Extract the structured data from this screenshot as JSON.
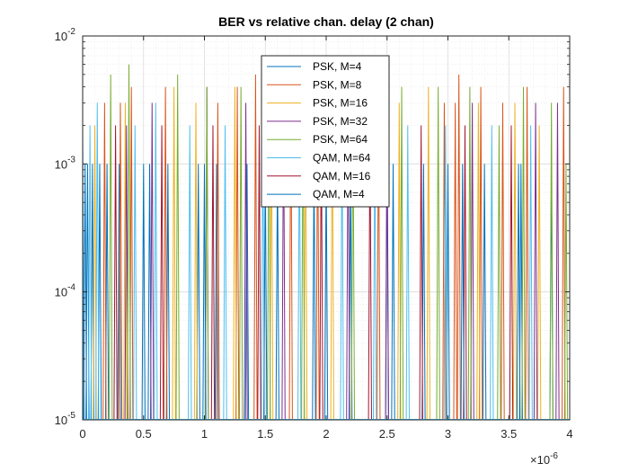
{
  "chart_data": {
    "type": "line",
    "title": "BER vs relative chan. delay (2 chan)",
    "xlabel": "",
    "ylabel": "",
    "xlim": [
      0,
      4e-06
    ],
    "ylim": [
      1e-05,
      0.01
    ],
    "yscale": "log",
    "grid": true,
    "minor_grid": true,
    "legend_position": "top-center",
    "x_tick_labels": [
      "0",
      "0.5",
      "1",
      "1.5",
      "2",
      "2.5",
      "3",
      "3.5",
      "4"
    ],
    "x_tick_values": [
      0,
      5e-07,
      1e-06,
      1.5e-06,
      2e-06,
      2.5e-06,
      3e-06,
      3.5e-06,
      4e-06
    ],
    "x_exponent_label": "×10",
    "x_exponent_power": "-6",
    "y_tick_values": [
      1e-05,
      0.0001,
      0.001,
      0.01
    ],
    "y_tick_base": "10",
    "y_tick_powers": [
      "-5",
      "-4",
      "-3",
      "-2"
    ],
    "colors": {
      "axes": "#262626",
      "grid": "#dcdcdc",
      "background": "#ffffff"
    },
    "series": [
      {
        "name": "PSK, M=4",
        "color": "#0072BD",
        "period": 2.5e-08,
        "peaks": [
          [
            0.0,
            0.001
          ],
          [
            0.04,
            0.001
          ],
          [
            0.08,
            0.001
          ],
          [
            0.14,
            0.001
          ],
          [
            0.2,
            0.001
          ],
          [
            0.3,
            0.001
          ],
          [
            0.55,
            0.001
          ],
          [
            0.7,
            0.001
          ],
          [
            0.95,
            0.001
          ],
          [
            1.1,
            0.001
          ],
          [
            1.35,
            0.001
          ],
          [
            1.6,
            0.001
          ],
          [
            1.9,
            0.001
          ],
          [
            2.2,
            0.001
          ],
          [
            2.5,
            0.001
          ],
          [
            2.8,
            0.001
          ],
          [
            3.0,
            0.001
          ],
          [
            3.3,
            0.001
          ],
          [
            3.6,
            0.001
          ],
          [
            3.85,
            0.001
          ]
        ]
      },
      {
        "name": "PSK, M=8",
        "color": "#D95319",
        "period": 2.5e-08,
        "peaks": [
          [
            0.18,
            0.003
          ],
          [
            0.31,
            0.003
          ],
          [
            0.4,
            0.004
          ],
          [
            0.68,
            0.004
          ],
          [
            1.11,
            0.003
          ],
          [
            1.27,
            0.004
          ],
          [
            1.42,
            0.005
          ],
          [
            1.71,
            0.004
          ],
          [
            1.93,
            0.003
          ],
          [
            2.43,
            0.003
          ],
          [
            2.97,
            0.003
          ],
          [
            3.06,
            0.003
          ],
          [
            3.09,
            0.005
          ],
          [
            3.27,
            0.004
          ],
          [
            3.45,
            0.003
          ],
          [
            3.65,
            0.004
          ],
          [
            3.95,
            0.004
          ]
        ]
      },
      {
        "name": "PSK, M=16",
        "color": "#EDB120",
        "period": 2.5e-08,
        "peaks": [
          [
            0.1,
            0.002
          ],
          [
            0.35,
            0.003
          ],
          [
            0.75,
            0.004
          ],
          [
            0.93,
            0.003
          ],
          [
            1.25,
            0.004
          ],
          [
            1.55,
            0.003
          ],
          [
            1.83,
            0.004
          ],
          [
            2.05,
            0.003
          ],
          [
            2.6,
            0.003
          ],
          [
            2.84,
            0.004
          ],
          [
            3.25,
            0.003
          ],
          [
            3.55,
            0.003
          ],
          [
            3.75,
            0.002
          ]
        ]
      },
      {
        "name": "PSK, M=32",
        "color": "#7E2F8E",
        "period": 2.5e-08,
        "peaks": [
          [
            0.36,
            0.002
          ],
          [
            0.57,
            0.003
          ],
          [
            1.02,
            0.004
          ],
          [
            1.34,
            0.003
          ],
          [
            1.65,
            0.003
          ],
          [
            2.18,
            0.003
          ],
          [
            2.5,
            0.003
          ],
          [
            3.2,
            0.003
          ],
          [
            3.72,
            0.003
          ],
          [
            3.9,
            0.003
          ]
        ]
      },
      {
        "name": "PSK, M=64",
        "color": "#77AC30",
        "period": 2.5e-08,
        "peaks": [
          [
            0.23,
            0.005
          ],
          [
            0.38,
            0.006
          ],
          [
            0.78,
            0.005
          ],
          [
            1.02,
            0.004
          ],
          [
            1.3,
            0.004
          ],
          [
            1.53,
            0.004
          ],
          [
            1.81,
            0.003
          ],
          [
            2.22,
            0.003
          ],
          [
            2.62,
            0.004
          ],
          [
            2.92,
            0.004
          ],
          [
            3.18,
            0.004
          ],
          [
            3.42,
            0.002
          ],
          [
            3.62,
            0.004
          ],
          [
            3.85,
            0.003
          ],
          [
            3.97,
            0.001
          ]
        ]
      },
      {
        "name": "QAM, M=64",
        "color": "#4DBEEE",
        "period": 2.5e-08,
        "peaks": [
          [
            0.0,
            0.002
          ],
          [
            0.06,
            0.002
          ],
          [
            0.12,
            0.003
          ],
          [
            0.43,
            0.002
          ],
          [
            0.6,
            0.003
          ],
          [
            0.88,
            0.002
          ],
          [
            1.17,
            0.002
          ],
          [
            1.48,
            0.002
          ],
          [
            1.78,
            0.002
          ],
          [
            2.13,
            0.002
          ],
          [
            2.4,
            0.002
          ],
          [
            2.67,
            0.002
          ],
          [
            2.98,
            0.002
          ],
          [
            3.36,
            0.002
          ],
          [
            3.68,
            0.002
          ]
        ]
      },
      {
        "name": "QAM, M=16",
        "color": "#A2142F",
        "period": 2.5e-08,
        "peaks": [
          [
            0.27,
            0.002
          ],
          [
            0.65,
            0.002
          ],
          [
            1.07,
            0.002
          ],
          [
            1.45,
            0.002
          ],
          [
            1.96,
            0.002
          ],
          [
            2.36,
            0.002
          ],
          [
            2.78,
            0.002
          ],
          [
            3.14,
            0.002
          ],
          [
            3.52,
            0.002
          ]
        ]
      },
      {
        "name": "QAM, M=4",
        "color": "#0072BD",
        "period": 2.5e-08,
        "peaks": [
          [
            0.02,
            0.001
          ],
          [
            0.5,
            0.001
          ],
          [
            1.0,
            0.001
          ],
          [
            1.5,
            0.001
          ],
          [
            2.0,
            0.001
          ],
          [
            2.55,
            0.001
          ],
          [
            3.12,
            0.001
          ],
          [
            3.58,
            0.001
          ]
        ]
      }
    ]
  }
}
